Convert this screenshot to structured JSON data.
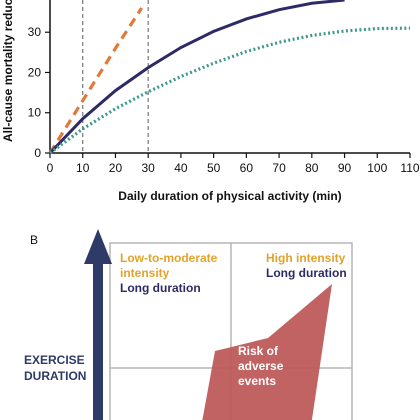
{
  "chart_data": {
    "type": "line",
    "xlabel": "Daily duration of physical activity (min)",
    "ylabel": "All-cause mortality reduc",
    "xlim": [
      0,
      110
    ],
    "ylim": [
      0,
      38
    ],
    "x_ticks": [
      "0",
      "10",
      "20",
      "30",
      "40",
      "50",
      "60",
      "70",
      "80",
      "90",
      "100",
      "110"
    ],
    "y_ticks": [
      "0",
      "10",
      "20",
      "30"
    ],
    "reference_lines_x": [
      10,
      30
    ],
    "grid": false,
    "series": [
      {
        "style": "dashed",
        "color": "#e07a3a",
        "x": [
          0,
          10,
          20,
          28
        ],
        "y": [
          0,
          13,
          26,
          36
        ]
      },
      {
        "style": "solid",
        "color": "#2e2a66",
        "x": [
          0,
          10,
          20,
          30,
          40,
          50,
          60,
          70,
          80,
          90
        ],
        "y": [
          0,
          8.5,
          15.5,
          21.2,
          26.2,
          30.2,
          33.3,
          35.6,
          37.2,
          38
        ]
      },
      {
        "style": "dotted",
        "color": "#3f9a8c",
        "x": [
          0,
          10,
          20,
          30,
          40,
          50,
          60,
          70,
          80,
          90,
          100,
          110
        ],
        "y": [
          0,
          6,
          11,
          15.2,
          19,
          22.3,
          25.2,
          27.5,
          29.2,
          30.3,
          30.9,
          31
        ]
      }
    ]
  },
  "panel_b": {
    "label": "B",
    "arrow_label_line1": "EXERCISE",
    "arrow_label_line2": "DURATION",
    "quadrant_left_line1": "Low-to-moderate",
    "quadrant_left_line2": "intensity",
    "quadrant_left_line3": "Long duration",
    "quadrant_right_line1": "High intensity",
    "quadrant_right_line2": "Long duration",
    "risk_line1": "Risk of",
    "risk_line2": "adverse",
    "risk_line3": "events",
    "colors": {
      "orange": "#e3a32b",
      "navy": "#2e2a66",
      "risk_fill": "#bf5b5b",
      "arrow": "#2e3a68",
      "grid": "#b5b5b5"
    }
  }
}
